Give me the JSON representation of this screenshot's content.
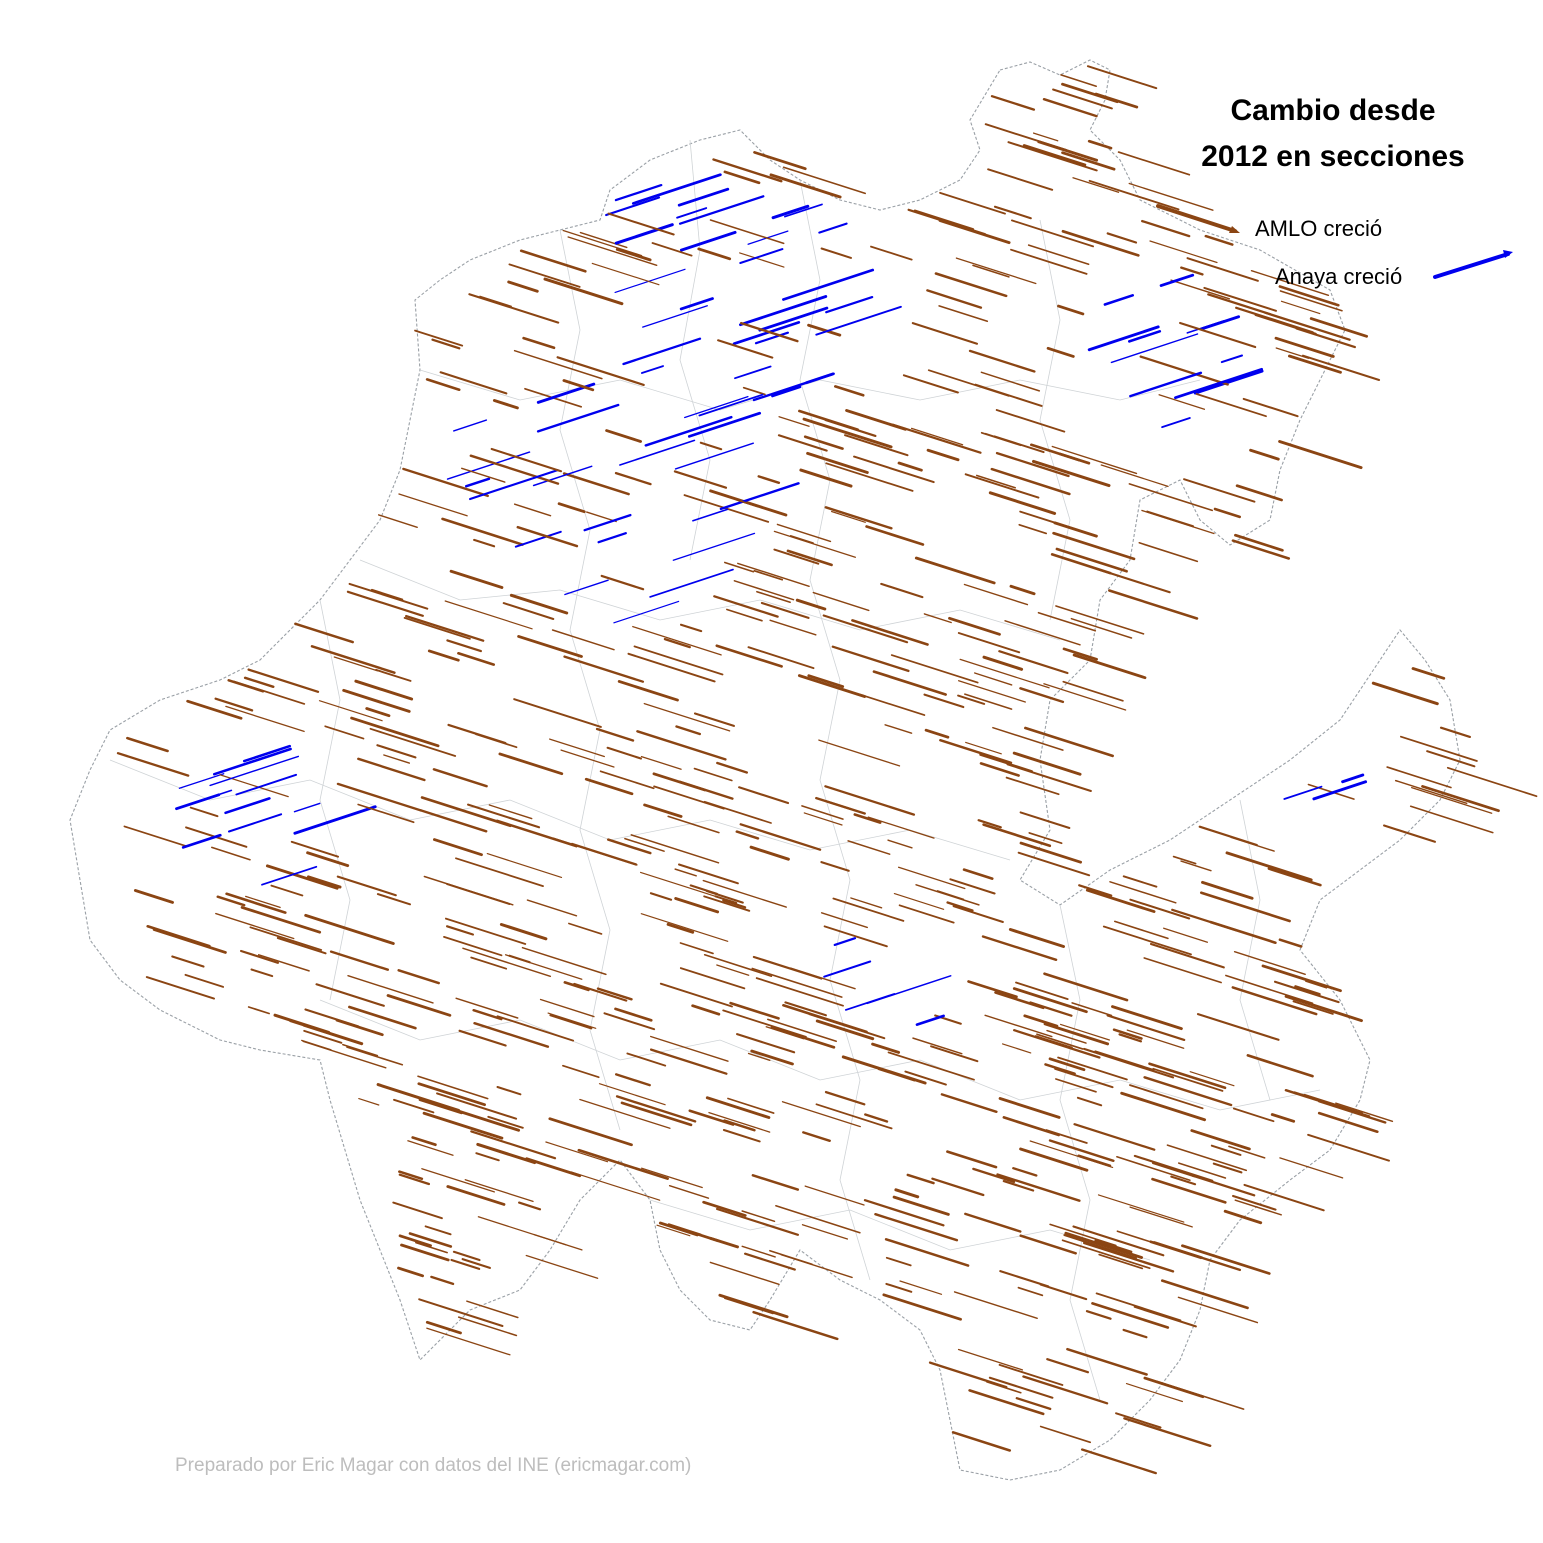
{
  "title": {
    "line1": "Cambio desde",
    "line2": "2012 en secciones"
  },
  "legend": {
    "amlo_label": "AMLO creció",
    "anaya_label": "Anaya creció"
  },
  "credit": "Preparado por Eric Magar con datos del INE (ericmagar.com)",
  "colors": {
    "amlo": "#8B4513",
    "anaya": "#0000ee",
    "boundary": "#9aa0a6",
    "credit": "#bdbdbd"
  }
}
